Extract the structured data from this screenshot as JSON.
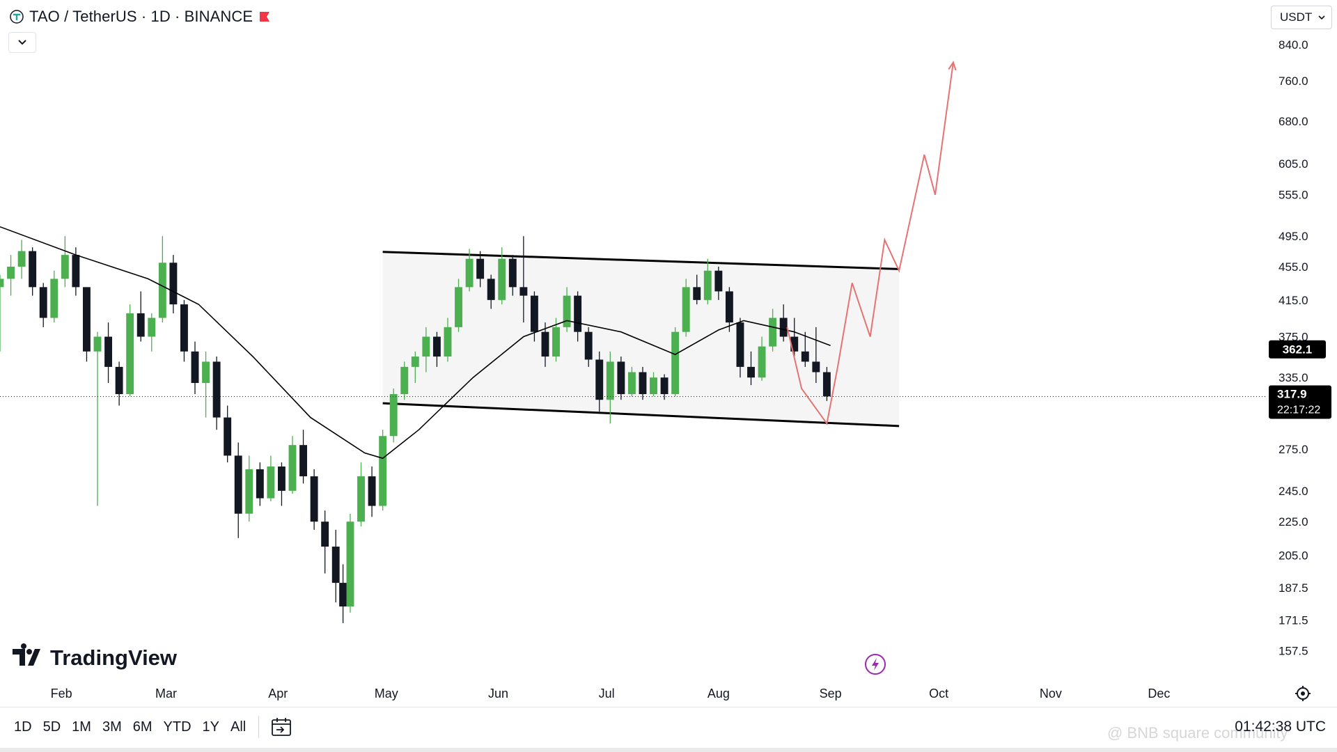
{
  "header": {
    "title": "TAO / TetherUS · 1D · BINANCE",
    "symbol_icon": "tao-logo-icon",
    "flag_icon": "red-flag-icon",
    "flag_color": "#f23645"
  },
  "currency_select": {
    "value": "USDT"
  },
  "brand": {
    "name": "TradingView"
  },
  "footer": {
    "ranges": [
      "1D",
      "5D",
      "1M",
      "3M",
      "6M",
      "YTD",
      "1Y",
      "All"
    ],
    "clock": "01:42:38 UTC"
  },
  "watermark": "@ BNB square community",
  "colors": {
    "up": "#4caf50",
    "down": "#131722",
    "projection": "#e57373",
    "channel_fill": "#f5f5f5",
    "tag_bg": "#000000"
  },
  "chart_data": {
    "type": "candlestick",
    "scale": "log",
    "ylim": [
      150,
      880
    ],
    "x_range": [
      "2024-01-15",
      "2024-12-31"
    ],
    "price_axis_ticks": [
      "840.0",
      "760.0",
      "680.0",
      "605.0",
      "555.0",
      "495.0",
      "455.0",
      "415.0",
      "375.0",
      "335.0",
      "275.0",
      "245.0",
      "225.0",
      "205.0",
      "187.5",
      "171.5",
      "157.5"
    ],
    "time_axis": [
      {
        "label": "Feb",
        "date": "2024-02-01"
      },
      {
        "label": "Mar",
        "date": "2024-03-01"
      },
      {
        "label": "Apr",
        "date": "2024-04-01"
      },
      {
        "label": "May",
        "date": "2024-05-01"
      },
      {
        "label": "Jun",
        "date": "2024-06-01"
      },
      {
        "label": "Jul",
        "date": "2024-07-01"
      },
      {
        "label": "Aug",
        "date": "2024-08-01"
      },
      {
        "label": "Sep",
        "date": "2024-09-01"
      },
      {
        "label": "Oct",
        "date": "2024-10-01"
      },
      {
        "label": "Nov",
        "date": "2024-11-01"
      },
      {
        "label": "Dec",
        "date": "2024-12-01"
      }
    ],
    "candles": [
      {
        "d": "2024-01-15",
        "o": 430,
        "h": 445,
        "l": 360,
        "c": 440
      },
      {
        "d": "2024-01-18",
        "o": 440,
        "h": 470,
        "l": 420,
        "c": 455
      },
      {
        "d": "2024-01-21",
        "o": 455,
        "h": 490,
        "l": 440,
        "c": 475
      },
      {
        "d": "2024-01-24",
        "o": 475,
        "h": 480,
        "l": 420,
        "c": 430
      },
      {
        "d": "2024-01-27",
        "o": 430,
        "h": 435,
        "l": 385,
        "c": 395
      },
      {
        "d": "2024-01-30",
        "o": 395,
        "h": 450,
        "l": 390,
        "c": 440
      },
      {
        "d": "2024-02-02",
        "o": 440,
        "h": 495,
        "l": 430,
        "c": 470
      },
      {
        "d": "2024-02-05",
        "o": 470,
        "h": 480,
        "l": 420,
        "c": 430
      },
      {
        "d": "2024-02-08",
        "o": 430,
        "h": 430,
        "l": 350,
        "c": 360
      },
      {
        "d": "2024-02-11",
        "o": 360,
        "h": 380,
        "l": 235,
        "c": 375
      },
      {
        "d": "2024-02-14",
        "o": 375,
        "h": 390,
        "l": 330,
        "c": 345
      },
      {
        "d": "2024-02-17",
        "o": 345,
        "h": 350,
        "l": 310,
        "c": 320
      },
      {
        "d": "2024-02-20",
        "o": 320,
        "h": 410,
        "l": 318,
        "c": 400
      },
      {
        "d": "2024-02-23",
        "o": 400,
        "h": 425,
        "l": 370,
        "c": 375
      },
      {
        "d": "2024-02-26",
        "o": 375,
        "h": 400,
        "l": 360,
        "c": 395
      },
      {
        "d": "2024-02-29",
        "o": 395,
        "h": 495,
        "l": 390,
        "c": 460
      },
      {
        "d": "2024-03-03",
        "o": 460,
        "h": 470,
        "l": 400,
        "c": 410
      },
      {
        "d": "2024-03-06",
        "o": 410,
        "h": 415,
        "l": 350,
        "c": 360
      },
      {
        "d": "2024-03-09",
        "o": 360,
        "h": 370,
        "l": 320,
        "c": 330
      },
      {
        "d": "2024-03-12",
        "o": 330,
        "h": 360,
        "l": 300,
        "c": 350
      },
      {
        "d": "2024-03-15",
        "o": 350,
        "h": 355,
        "l": 290,
        "c": 300
      },
      {
        "d": "2024-03-18",
        "o": 300,
        "h": 310,
        "l": 265,
        "c": 270
      },
      {
        "d": "2024-03-21",
        "o": 270,
        "h": 280,
        "l": 215,
        "c": 230
      },
      {
        "d": "2024-03-24",
        "o": 230,
        "h": 270,
        "l": 225,
        "c": 260
      },
      {
        "d": "2024-03-27",
        "o": 260,
        "h": 265,
        "l": 235,
        "c": 240
      },
      {
        "d": "2024-03-30",
        "o": 240,
        "h": 270,
        "l": 238,
        "c": 262
      },
      {
        "d": "2024-04-02",
        "o": 262,
        "h": 265,
        "l": 235,
        "c": 245
      },
      {
        "d": "2024-04-05",
        "o": 245,
        "h": 285,
        "l": 243,
        "c": 278
      },
      {
        "d": "2024-04-08",
        "o": 278,
        "h": 290,
        "l": 250,
        "c": 255
      },
      {
        "d": "2024-04-11",
        "o": 255,
        "h": 260,
        "l": 220,
        "c": 225
      },
      {
        "d": "2024-04-14",
        "o": 225,
        "h": 232,
        "l": 195,
        "c": 210
      },
      {
        "d": "2024-04-17",
        "o": 210,
        "h": 220,
        "l": 180,
        "c": 190
      },
      {
        "d": "2024-04-19",
        "o": 190,
        "h": 200,
        "l": 170,
        "c": 178
      },
      {
        "d": "2024-04-21",
        "o": 178,
        "h": 230,
        "l": 175,
        "c": 225
      },
      {
        "d": "2024-04-24",
        "o": 225,
        "h": 265,
        "l": 222,
        "c": 255
      },
      {
        "d": "2024-04-27",
        "o": 255,
        "h": 262,
        "l": 228,
        "c": 235
      },
      {
        "d": "2024-04-30",
        "o": 235,
        "h": 290,
        "l": 232,
        "c": 285
      },
      {
        "d": "2024-05-03",
        "o": 285,
        "h": 325,
        "l": 280,
        "c": 320
      },
      {
        "d": "2024-05-06",
        "o": 320,
        "h": 350,
        "l": 315,
        "c": 345
      },
      {
        "d": "2024-05-09",
        "o": 345,
        "h": 360,
        "l": 330,
        "c": 355
      },
      {
        "d": "2024-05-12",
        "o": 355,
        "h": 385,
        "l": 340,
        "c": 375
      },
      {
        "d": "2024-05-15",
        "o": 375,
        "h": 380,
        "l": 345,
        "c": 355
      },
      {
        "d": "2024-05-18",
        "o": 355,
        "h": 395,
        "l": 350,
        "c": 385
      },
      {
        "d": "2024-05-21",
        "o": 385,
        "h": 440,
        "l": 380,
        "c": 430
      },
      {
        "d": "2024-05-24",
        "o": 430,
        "h": 478,
        "l": 425,
        "c": 465
      },
      {
        "d": "2024-05-27",
        "o": 465,
        "h": 475,
        "l": 430,
        "c": 440
      },
      {
        "d": "2024-05-30",
        "o": 440,
        "h": 445,
        "l": 405,
        "c": 415
      },
      {
        "d": "2024-06-02",
        "o": 415,
        "h": 480,
        "l": 410,
        "c": 465
      },
      {
        "d": "2024-06-05",
        "o": 465,
        "h": 470,
        "l": 420,
        "c": 430
      },
      {
        "d": "2024-06-08",
        "o": 430,
        "h": 495,
        "l": 390,
        "c": 420
      },
      {
        "d": "2024-06-11",
        "o": 420,
        "h": 425,
        "l": 370,
        "c": 380
      },
      {
        "d": "2024-06-14",
        "o": 380,
        "h": 390,
        "l": 345,
        "c": 355
      },
      {
        "d": "2024-06-17",
        "o": 355,
        "h": 395,
        "l": 350,
        "c": 385
      },
      {
        "d": "2024-06-20",
        "o": 385,
        "h": 430,
        "l": 380,
        "c": 420
      },
      {
        "d": "2024-06-23",
        "o": 420,
        "h": 425,
        "l": 370,
        "c": 380
      },
      {
        "d": "2024-06-26",
        "o": 380,
        "h": 385,
        "l": 345,
        "c": 352
      },
      {
        "d": "2024-06-29",
        "o": 352,
        "h": 360,
        "l": 305,
        "c": 315
      },
      {
        "d": "2024-07-02",
        "o": 315,
        "h": 360,
        "l": 295,
        "c": 350
      },
      {
        "d": "2024-07-05",
        "o": 350,
        "h": 355,
        "l": 315,
        "c": 320
      },
      {
        "d": "2024-07-08",
        "o": 320,
        "h": 345,
        "l": 318,
        "c": 340
      },
      {
        "d": "2024-07-11",
        "o": 340,
        "h": 345,
        "l": 315,
        "c": 320
      },
      {
        "d": "2024-07-14",
        "o": 320,
        "h": 340,
        "l": 318,
        "c": 335
      },
      {
        "d": "2024-07-17",
        "o": 335,
        "h": 338,
        "l": 315,
        "c": 320
      },
      {
        "d": "2024-07-20",
        "o": 320,
        "h": 385,
        "l": 318,
        "c": 380
      },
      {
        "d": "2024-07-23",
        "o": 380,
        "h": 440,
        "l": 375,
        "c": 430
      },
      {
        "d": "2024-07-26",
        "o": 430,
        "h": 445,
        "l": 410,
        "c": 415
      },
      {
        "d": "2024-07-29",
        "o": 415,
        "h": 465,
        "l": 410,
        "c": 450
      },
      {
        "d": "2024-08-01",
        "o": 450,
        "h": 455,
        "l": 415,
        "c": 425
      },
      {
        "d": "2024-08-04",
        "o": 425,
        "h": 430,
        "l": 380,
        "c": 390
      },
      {
        "d": "2024-08-07",
        "o": 390,
        "h": 395,
        "l": 335,
        "c": 345
      },
      {
        "d": "2024-08-10",
        "o": 345,
        "h": 360,
        "l": 328,
        "c": 335
      },
      {
        "d": "2024-08-13",
        "o": 335,
        "h": 375,
        "l": 332,
        "c": 365
      },
      {
        "d": "2024-08-16",
        "o": 365,
        "h": 405,
        "l": 360,
        "c": 395
      },
      {
        "d": "2024-08-19",
        "o": 395,
        "h": 410,
        "l": 370,
        "c": 375
      },
      {
        "d": "2024-08-22",
        "o": 375,
        "h": 395,
        "l": 355,
        "c": 360
      },
      {
        "d": "2024-08-25",
        "o": 360,
        "h": 380,
        "l": 345,
        "c": 350
      },
      {
        "d": "2024-08-28",
        "o": 350,
        "h": 385,
        "l": 330,
        "c": 340
      },
      {
        "d": "2024-08-31",
        "o": 340,
        "h": 345,
        "l": 314,
        "c": 318
      }
    ],
    "moving_average": [
      {
        "d": "2024-01-15",
        "v": 508
      },
      {
        "d": "2024-02-05",
        "v": 470
      },
      {
        "d": "2024-02-25",
        "v": 440
      },
      {
        "d": "2024-03-10",
        "v": 410
      },
      {
        "d": "2024-03-25",
        "v": 355
      },
      {
        "d": "2024-04-10",
        "v": 300
      },
      {
        "d": "2024-04-25",
        "v": 272
      },
      {
        "d": "2024-04-30",
        "v": 268
      },
      {
        "d": "2024-05-10",
        "v": 290
      },
      {
        "d": "2024-05-25",
        "v": 335
      },
      {
        "d": "2024-06-08",
        "v": 375
      },
      {
        "d": "2024-06-20",
        "v": 392
      },
      {
        "d": "2024-07-05",
        "v": 380
      },
      {
        "d": "2024-07-20",
        "v": 357
      },
      {
        "d": "2024-08-01",
        "v": 382
      },
      {
        "d": "2024-08-08",
        "v": 392
      },
      {
        "d": "2024-08-22",
        "v": 380
      },
      {
        "d": "2024-09-01",
        "v": 366
      }
    ],
    "channel": {
      "upper": [
        {
          "d": "2024-04-30",
          "v": 474
        },
        {
          "d": "2024-09-20",
          "v": 452
        }
      ],
      "lower": [
        {
          "d": "2024-04-30",
          "v": 312
        },
        {
          "d": "2024-09-20",
          "v": 293
        }
      ]
    },
    "projection_path": [
      {
        "d": "2024-08-20",
        "v": 385
      },
      {
        "d": "2024-08-24",
        "v": 325
      },
      {
        "d": "2024-08-31",
        "v": 295
      },
      {
        "d": "2024-09-03",
        "v": 345
      },
      {
        "d": "2024-09-07",
        "v": 435
      },
      {
        "d": "2024-09-12",
        "v": 375
      },
      {
        "d": "2024-09-16",
        "v": 490
      },
      {
        "d": "2024-09-20",
        "v": 450
      },
      {
        "d": "2024-09-27",
        "v": 620
      },
      {
        "d": "2024-09-30",
        "v": 555
      },
      {
        "d": "2024-10-05",
        "v": 800
      }
    ],
    "price_tags": {
      "ma_value": "362.1",
      "last_price": "317.9",
      "countdown": "22:17:22",
      "last_price_value": 317.9,
      "ma_tag_value": 362.1
    }
  }
}
